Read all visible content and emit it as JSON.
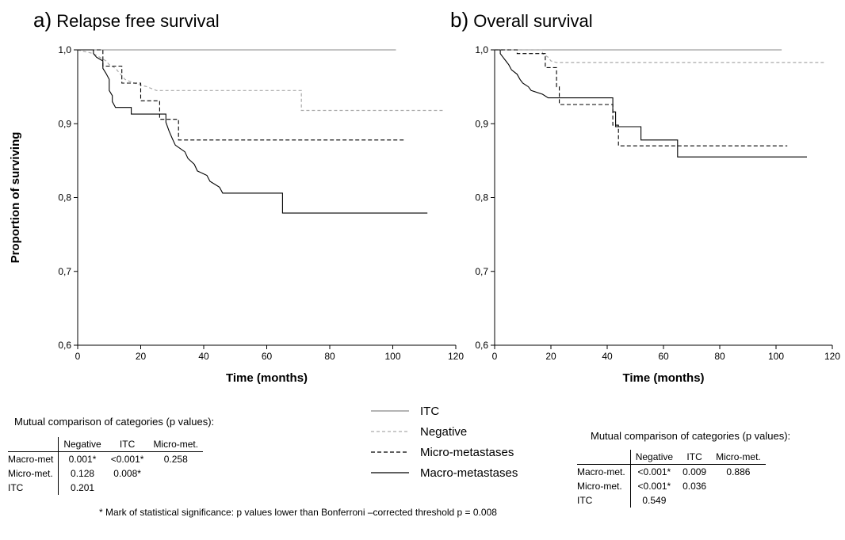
{
  "panel_a": {
    "letter": "a)",
    "title": "Relapse free survival",
    "comparison_title": "Mutual comparison of categories (p values):",
    "table": {
      "columns": [
        "Negative",
        "ITC",
        "Micro-met."
      ],
      "rows": [
        {
          "label": "Macro-met",
          "values": [
            "0.001*",
            "<0.001*",
            "0.258"
          ]
        },
        {
          "label": "Micro-met.",
          "values": [
            "0.128",
            "0.008*",
            ""
          ]
        },
        {
          "label": "ITC",
          "values": [
            "0.201",
            "",
            ""
          ]
        }
      ]
    }
  },
  "panel_b": {
    "letter": "b)",
    "title": "Overall survival",
    "comparison_title": "Mutual comparison of categories (p values):",
    "table": {
      "columns": [
        "Negative",
        "ITC",
        "Micro-met."
      ],
      "rows": [
        {
          "label": "Macro-met.",
          "values": [
            "<0.001*",
            "0.009",
            "0.886"
          ]
        },
        {
          "label": "Micro-met.",
          "values": [
            "<0.001*",
            "0.036",
            ""
          ]
        },
        {
          "label": "ITC",
          "values": [
            "0.549",
            "",
            ""
          ]
        }
      ]
    }
  },
  "legend": {
    "items": [
      {
        "label": "ITC",
        "color": "#888888",
        "dash": "none"
      },
      {
        "label": "Negative",
        "color": "#aaaaaa",
        "dash": "4,3"
      },
      {
        "label": "Micro-metastases",
        "color": "#000000",
        "dash": "5,3"
      },
      {
        "label": "Macro-metastases",
        "color": "#000000",
        "dash": "none"
      }
    ]
  },
  "footnote": "* Mark of statistical significance: p values lower than Bonferroni –corrected threshold p = 0.008",
  "chart_data": [
    {
      "type": "line",
      "title": "Relapse free survival",
      "xlabel": "Time (months)",
      "ylabel": "Proportion of surviving",
      "xlim": [
        0,
        120
      ],
      "ylim": [
        0.6,
        1.0
      ],
      "x_ticks": [
        "0",
        "20",
        "40",
        "60",
        "80",
        "100",
        "120"
      ],
      "y_ticks": [
        "0,6",
        "0,7",
        "0,8",
        "0,9",
        "1,0"
      ],
      "series": [
        {
          "name": "ITC",
          "points": [
            [
              0,
              1.0
            ],
            [
              101,
              1.0
            ]
          ]
        },
        {
          "name": "Negative",
          "points": [
            [
              0,
              1.0
            ],
            [
              5,
              0.995
            ],
            [
              7,
              0.99
            ],
            [
              9,
              0.985
            ],
            [
              10,
              0.98
            ],
            [
              12,
              0.975
            ],
            [
              13,
              0.97
            ],
            [
              14,
              0.965
            ],
            [
              15,
              0.96
            ],
            [
              18,
              0.955
            ],
            [
              22,
              0.95
            ],
            [
              25,
              0.945
            ],
            [
              71,
              0.945
            ],
            [
              71,
              0.918
            ],
            [
              116,
              0.918
            ]
          ]
        },
        {
          "name": "Micro-metastases",
          "points": [
            [
              0,
              1.0
            ],
            [
              8,
              1.0
            ],
            [
              8,
              0.978
            ],
            [
              14,
              0.978
            ],
            [
              14,
              0.955
            ],
            [
              20,
              0.955
            ],
            [
              20,
              0.931
            ],
            [
              26,
              0.931
            ],
            [
              26,
              0.906
            ],
            [
              32,
              0.906
            ],
            [
              32,
              0.878
            ],
            [
              104,
              0.878
            ]
          ]
        },
        {
          "name": "Macro-metastases",
          "points": [
            [
              0,
              1.0
            ],
            [
              5,
              1.0
            ],
            [
              5,
              0.995
            ],
            [
              6,
              0.99
            ],
            [
              8,
              0.985
            ],
            [
              8,
              0.975
            ],
            [
              9,
              0.968
            ],
            [
              10,
              0.96
            ],
            [
              10,
              0.945
            ],
            [
              11,
              0.938
            ],
            [
              11,
              0.93
            ],
            [
              12,
              0.922
            ],
            [
              17,
              0.922
            ],
            [
              17,
              0.913
            ],
            [
              28,
              0.913
            ],
            [
              28,
              0.902
            ],
            [
              29,
              0.89
            ],
            [
              30,
              0.88
            ],
            [
              31,
              0.871
            ],
            [
              34,
              0.862
            ],
            [
              35,
              0.853
            ],
            [
              37,
              0.845
            ],
            [
              38,
              0.836
            ],
            [
              41,
              0.83
            ],
            [
              42,
              0.822
            ],
            [
              45,
              0.814
            ],
            [
              46,
              0.806
            ],
            [
              65,
              0.806
            ],
            [
              65,
              0.779
            ],
            [
              111,
              0.779
            ]
          ]
        }
      ]
    },
    {
      "type": "line",
      "title": "Overall survival",
      "xlabel": "Time (months)",
      "ylabel": "",
      "xlim": [
        0,
        120
      ],
      "ylim": [
        0.6,
        1.0
      ],
      "x_ticks": [
        "0",
        "20",
        "40",
        "60",
        "80",
        "100",
        "120"
      ],
      "y_ticks": [
        "0,6",
        "0,7",
        "0,8",
        "0,9",
        "1,0"
      ],
      "series": [
        {
          "name": "ITC",
          "points": [
            [
              0,
              1.0
            ],
            [
              102,
              1.0
            ]
          ]
        },
        {
          "name": "Negative",
          "points": [
            [
              0,
              1.0
            ],
            [
              17,
              1.0
            ],
            [
              17,
              0.995
            ],
            [
              19,
              0.99
            ],
            [
              20,
              0.985
            ],
            [
              22,
              0.983
            ],
            [
              117,
              0.983
            ]
          ]
        },
        {
          "name": "Micro-metastases",
          "points": [
            [
              0,
              1.0
            ],
            [
              8,
              1.0
            ],
            [
              8,
              0.995
            ],
            [
              18,
              0.995
            ],
            [
              18,
              0.976
            ],
            [
              22,
              0.976
            ],
            [
              22,
              0.95
            ],
            [
              23,
              0.95
            ],
            [
              23,
              0.926
            ],
            [
              42,
              0.926
            ],
            [
              42,
              0.898
            ],
            [
              44,
              0.898
            ],
            [
              44,
              0.87
            ],
            [
              104,
              0.87
            ]
          ]
        },
        {
          "name": "Macro-metastases",
          "points": [
            [
              0,
              1.0
            ],
            [
              2,
              1.0
            ],
            [
              2,
              0.995
            ],
            [
              3,
              0.99
            ],
            [
              4,
              0.985
            ],
            [
              5,
              0.98
            ],
            [
              6,
              0.973
            ],
            [
              8,
              0.967
            ],
            [
              9,
              0.96
            ],
            [
              10,
              0.955
            ],
            [
              12,
              0.95
            ],
            [
              13,
              0.945
            ],
            [
              17,
              0.94
            ],
            [
              19,
              0.935
            ],
            [
              42,
              0.935
            ],
            [
              42,
              0.916
            ],
            [
              43,
              0.916
            ],
            [
              43,
              0.896
            ],
            [
              52,
              0.896
            ],
            [
              52,
              0.878
            ],
            [
              65,
              0.878
            ],
            [
              65,
              0.855
            ],
            [
              111,
              0.855
            ]
          ]
        }
      ]
    }
  ]
}
